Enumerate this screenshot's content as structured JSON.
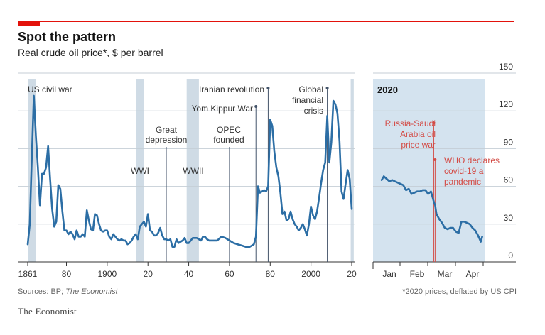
{
  "header": {
    "title": "Spot the pattern",
    "subtitle": "Real crude oil price*, $ per barrel"
  },
  "footer": {
    "sources_prefix": "Sources: BP; ",
    "sources_italic": "The Economist",
    "footnote": "*2020 prices, deflated by US CPI",
    "brand": "The Economist"
  },
  "colors": {
    "line": "#2c6ea5",
    "shade": "#cfdbe5",
    "panel": "#d4e3ef",
    "red": "#e3120b",
    "annotation_red": "#d34b45",
    "grid": "#c4ced6"
  },
  "chart_data": [
    {
      "type": "line",
      "x_tick_labels": [
        "1861",
        "80",
        "1900",
        "20",
        "40",
        "60",
        "80",
        "2000",
        "20"
      ],
      "x_tick_values": [
        1861,
        1880,
        1900,
        1920,
        1940,
        1960,
        1980,
        2000,
        2020
      ],
      "xlim": [
        1860,
        2021
      ],
      "ylim": [
        0,
        150
      ],
      "y_ticks": [
        0,
        30,
        60,
        90,
        120,
        150
      ],
      "grid": true,
      "shaded_periods": [
        {
          "label": "US civil war",
          "start": 1861,
          "end": 1865
        },
        {
          "label": "WWI",
          "start": 1914,
          "end": 1918
        },
        {
          "label": "WWII",
          "start": 1939,
          "end": 1945
        },
        {
          "label": "",
          "start": 2019.5,
          "end": 2021
        }
      ],
      "annotations": [
        {
          "label": "Great depression",
          "x": 1929
        },
        {
          "label": "OPEC founded",
          "x": 1960
        },
        {
          "label": "Yom Kippur War",
          "x": 1973
        },
        {
          "label": "Iranian revolution",
          "x": 1979
        },
        {
          "label": "Global financial crisis",
          "x": 2008
        }
      ],
      "series": [
        {
          "x": [
            1861,
            1862,
            1863,
            1864,
            1865,
            1866,
            1867,
            1868,
            1869,
            1870,
            1871,
            1872,
            1873,
            1874,
            1875,
            1876,
            1877,
            1878,
            1879,
            1880,
            1881,
            1882,
            1883,
            1884,
            1885,
            1886,
            1887,
            1888,
            1889,
            1890,
            1891,
            1892,
            1893,
            1894,
            1895,
            1896,
            1897,
            1898,
            1899,
            1900,
            1901,
            1902,
            1903,
            1904,
            1905,
            1906,
            1907,
            1908,
            1909,
            1910,
            1911,
            1912,
            1913,
            1914,
            1915,
            1916,
            1917,
            1918,
            1919,
            1920,
            1921,
            1922,
            1923,
            1924,
            1925,
            1926,
            1927,
            1928,
            1929,
            1930,
            1931,
            1932,
            1933,
            1934,
            1935,
            1936,
            1937,
            1938,
            1939,
            1940,
            1941,
            1942,
            1943,
            1944,
            1945,
            1946,
            1947,
            1948,
            1949,
            1950,
            1952,
            1954,
            1956,
            1958,
            1960,
            1962,
            1964,
            1966,
            1968,
            1970,
            1972,
            1973,
            1974,
            1975,
            1976,
            1977,
            1978,
            1979,
            1980,
            1981,
            1982,
            1983,
            1984,
            1985,
            1986,
            1987,
            1988,
            1989,
            1990,
            1991,
            1992,
            1993,
            1994,
            1995,
            1996,
            1997,
            1998,
            1999,
            2000,
            2001,
            2002,
            2003,
            2004,
            2005,
            2006,
            2007,
            2008,
            2009,
            2010,
            2011,
            2012,
            2013,
            2014,
            2015,
            2016,
            2017,
            2018,
            2019,
            2020
          ],
          "y": [
            14,
            30,
            82,
            132,
            100,
            75,
            45,
            70,
            70,
            75,
            92,
            66,
            42,
            28,
            32,
            61,
            58,
            40,
            25,
            25,
            22,
            24,
            22,
            18,
            25,
            20,
            20,
            22,
            20,
            41,
            33,
            26,
            25,
            38,
            37,
            30,
            25,
            24,
            25,
            25,
            20,
            18,
            22,
            20,
            18,
            17,
            18,
            17,
            17,
            14,
            15,
            17,
            20,
            22,
            18,
            28,
            30,
            32,
            28,
            38,
            25,
            24,
            21,
            21,
            23,
            27,
            21,
            18,
            18,
            17,
            18,
            12,
            12,
            18,
            15,
            16,
            17,
            19,
            15,
            15,
            17,
            19,
            19,
            19,
            18,
            17,
            20,
            20,
            18,
            17,
            17,
            17,
            20,
            19,
            17,
            15,
            14,
            13,
            12,
            12,
            14,
            20,
            60,
            55,
            56,
            57,
            56,
            60,
            113,
            108,
            88,
            75,
            68,
            55,
            38,
            40,
            33,
            34,
            40,
            34,
            30,
            28,
            25,
            27,
            30,
            26,
            21,
            30,
            44,
            37,
            34,
            40,
            51,
            63,
            73,
            79,
            116,
            79,
            95,
            128,
            125,
            118,
            96,
            56,
            50,
            62,
            73,
            66,
            42
          ]
        }
      ]
    },
    {
      "type": "line",
      "title": "2020",
      "x_tick_labels": [
        "Jan",
        "Feb",
        "Mar",
        "Apr"
      ],
      "x_tick_values": [
        0,
        1,
        2,
        3
      ],
      "xlim": [
        -0.3,
        3.55
      ],
      "ylim": [
        0,
        150
      ],
      "y_ticks": [
        0,
        30,
        60,
        90,
        120,
        150
      ],
      "y_tick_labels": [
        "0",
        "30",
        "60",
        "90",
        "120",
        "150"
      ],
      "grid": true,
      "annotations": [
        {
          "label": "Russia-Saudi Arabia oil price war",
          "x": 1.6
        },
        {
          "label": "WHO declares covid-19 a pandemic",
          "x": 1.65
        }
      ],
      "series": [
        {
          "x": [
            -0.28,
            -0.2,
            -0.1,
            0.0,
            0.1,
            0.2,
            0.3,
            0.4,
            0.5,
            0.6,
            0.7,
            0.8,
            0.9,
            1.0,
            1.1,
            1.2,
            1.3,
            1.4,
            1.5,
            1.55,
            1.6,
            1.65,
            1.7,
            1.8,
            1.9,
            2.0,
            2.1,
            2.2,
            2.3,
            2.4,
            2.5,
            2.6,
            2.7,
            2.8,
            2.9,
            3.0,
            3.1,
            3.2,
            3.3,
            3.35
          ],
          "y": [
            65,
            68,
            66,
            64,
            65,
            64,
            63,
            62,
            61,
            57,
            58,
            54,
            55,
            56,
            56,
            57,
            57,
            54,
            56,
            52,
            48,
            45,
            38,
            34,
            31,
            27,
            26,
            27,
            27,
            24,
            23,
            32,
            32,
            31,
            30,
            27,
            25,
            21,
            16,
            20
          ]
        }
      ]
    }
  ]
}
